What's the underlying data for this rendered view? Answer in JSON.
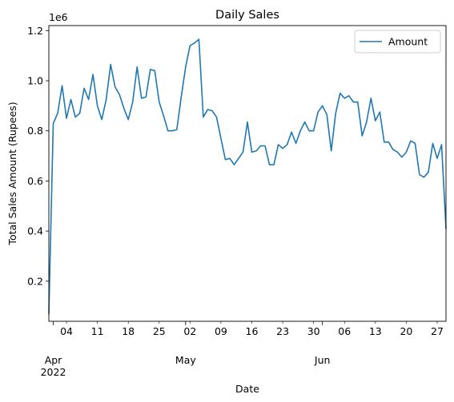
{
  "chart_data": {
    "type": "line",
    "title": "Daily Sales",
    "xlabel": "Date",
    "ylabel": "Total Sales Amount (Rupees)",
    "y_offset_label": "1e6",
    "y_multiplier": 1000000,
    "grid": false,
    "legend_position": "top-right",
    "xlim": [
      "2022-03-31",
      "2022-06-29"
    ],
    "ylim": [
      40000,
      1220000
    ],
    "y_ticks": [
      0.2,
      0.4,
      0.6,
      0.8,
      1.0,
      1.2
    ],
    "x_minor_ticks": [
      {
        "date": "2022-04-04",
        "label": "04"
      },
      {
        "date": "2022-04-11",
        "label": "11"
      },
      {
        "date": "2022-04-18",
        "label": "18"
      },
      {
        "date": "2022-04-25",
        "label": "25"
      },
      {
        "date": "2022-05-02",
        "label": "02"
      },
      {
        "date": "2022-05-09",
        "label": "09"
      },
      {
        "date": "2022-05-16",
        "label": "16"
      },
      {
        "date": "2022-05-23",
        "label": "23"
      },
      {
        "date": "2022-05-30",
        "label": "30"
      },
      {
        "date": "2022-06-06",
        "label": "06"
      },
      {
        "date": "2022-06-13",
        "label": "13"
      },
      {
        "date": "2022-06-20",
        "label": "20"
      },
      {
        "date": "2022-06-27",
        "label": "27"
      }
    ],
    "x_major_ticks": [
      {
        "date": "2022-04-01",
        "label": "Apr",
        "sublabel": "2022"
      },
      {
        "date": "2022-05-01",
        "label": "May",
        "sublabel": ""
      },
      {
        "date": "2022-06-01",
        "label": "Jun",
        "sublabel": ""
      }
    ],
    "series": [
      {
        "name": "Amount",
        "color": "#1f77b4",
        "x": [
          "2022-03-31",
          "2022-04-01",
          "2022-04-02",
          "2022-04-03",
          "2022-04-04",
          "2022-04-05",
          "2022-04-06",
          "2022-04-07",
          "2022-04-08",
          "2022-04-09",
          "2022-04-10",
          "2022-04-11",
          "2022-04-12",
          "2022-04-13",
          "2022-04-14",
          "2022-04-15",
          "2022-04-16",
          "2022-04-17",
          "2022-04-18",
          "2022-04-19",
          "2022-04-20",
          "2022-04-21",
          "2022-04-22",
          "2022-04-23",
          "2022-04-24",
          "2022-04-25",
          "2022-04-26",
          "2022-04-27",
          "2022-04-28",
          "2022-04-29",
          "2022-04-30",
          "2022-05-01",
          "2022-05-02",
          "2022-05-03",
          "2022-05-04",
          "2022-05-05",
          "2022-05-06",
          "2022-05-07",
          "2022-05-08",
          "2022-05-09",
          "2022-05-10",
          "2022-05-11",
          "2022-05-12",
          "2022-05-13",
          "2022-05-14",
          "2022-05-15",
          "2022-05-16",
          "2022-05-17",
          "2022-05-18",
          "2022-05-19",
          "2022-05-20",
          "2022-05-21",
          "2022-05-22",
          "2022-05-23",
          "2022-05-24",
          "2022-05-25",
          "2022-05-26",
          "2022-05-27",
          "2022-05-28",
          "2022-05-29",
          "2022-05-30",
          "2022-05-31",
          "2022-06-01",
          "2022-06-02",
          "2022-06-03",
          "2022-06-04",
          "2022-06-05",
          "2022-06-06",
          "2022-06-07",
          "2022-06-08",
          "2022-06-09",
          "2022-06-10",
          "2022-06-11",
          "2022-06-12",
          "2022-06-13",
          "2022-06-14",
          "2022-06-15",
          "2022-06-16",
          "2022-06-17",
          "2022-06-18",
          "2022-06-19",
          "2022-06-20",
          "2022-06-21",
          "2022-06-22",
          "2022-06-23",
          "2022-06-24",
          "2022-06-25",
          "2022-06-26",
          "2022-06-27",
          "2022-06-28",
          "2022-06-29"
        ],
        "values": [
          70000,
          830000,
          870000,
          980000,
          850000,
          925000,
          855000,
          870000,
          970000,
          925000,
          1025000,
          900000,
          845000,
          925000,
          1065000,
          975000,
          945000,
          890000,
          845000,
          915000,
          1055000,
          930000,
          935000,
          1045000,
          1040000,
          915000,
          860000,
          800000,
          800000,
          805000,
          935000,
          1055000,
          1140000,
          1150000,
          1165000,
          855000,
          885000,
          880000,
          855000,
          770000,
          685000,
          690000,
          665000,
          690000,
          715000,
          835000,
          715000,
          720000,
          740000,
          740000,
          665000,
          665000,
          745000,
          730000,
          745000,
          795000,
          750000,
          800000,
          835000,
          800000,
          800000,
          875000,
          900000,
          865000,
          720000,
          870000,
          950000,
          930000,
          940000,
          915000,
          915000,
          780000,
          835000,
          930000,
          840000,
          875000,
          755000,
          755000,
          725000,
          715000,
          695000,
          715000,
          760000,
          750000,
          625000,
          615000,
          635000,
          750000,
          690000,
          745000,
          410000
        ]
      }
    ]
  }
}
